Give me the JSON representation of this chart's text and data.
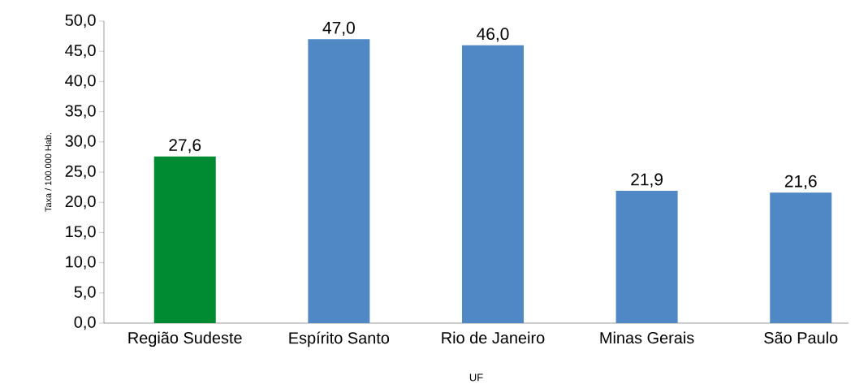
{
  "chart_data": {
    "type": "bar",
    "xlabel": "UF",
    "ylabel": "Taxa / 100.000 Hab.",
    "categories": [
      "Região Sudeste",
      "Espírito Santo",
      "Rio de Janeiro",
      "Minas Gerais",
      "São Paulo"
    ],
    "values": [
      27.6,
      47.0,
      46.0,
      21.9,
      21.6
    ],
    "value_labels": [
      "27,6",
      "47,0",
      "46,0",
      "21,9",
      "21,6"
    ],
    "colors": [
      "#008a32",
      "#5088c5",
      "#5088c5",
      "#5088c5",
      "#5088c5"
    ],
    "ylim": [
      0,
      50
    ],
    "yticks": [
      {
        "value": 0,
        "label": "0,0"
      },
      {
        "value": 5,
        "label": "5,0"
      },
      {
        "value": 10,
        "label": "10,0"
      },
      {
        "value": 15,
        "label": "15,0"
      },
      {
        "value": 20,
        "label": "20,0"
      },
      {
        "value": 25,
        "label": "25,0"
      },
      {
        "value": 30,
        "label": "30,0"
      },
      {
        "value": 35,
        "label": "35,0"
      },
      {
        "value": 40,
        "label": "40,0"
      },
      {
        "value": 45,
        "label": "45,0"
      },
      {
        "value": 50,
        "label": "50,0"
      }
    ]
  }
}
